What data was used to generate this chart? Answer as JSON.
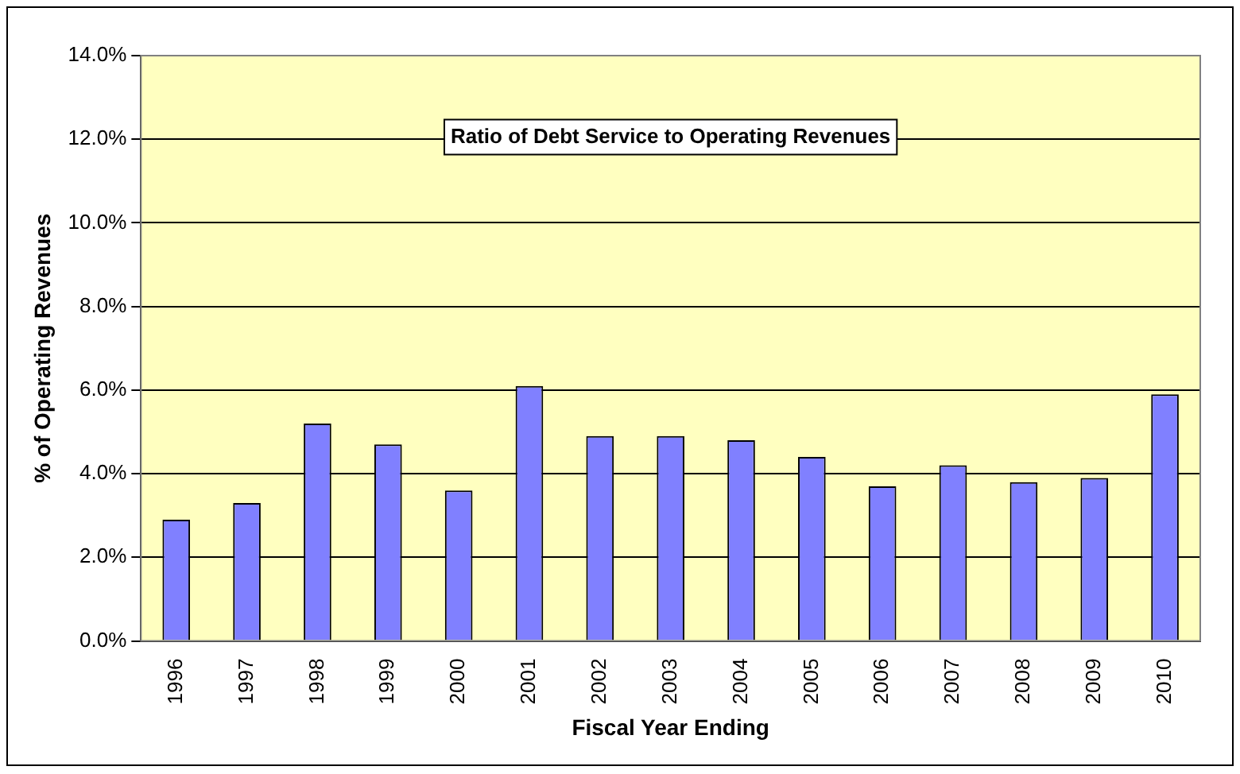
{
  "chart_data": {
    "type": "bar",
    "title": "Ratio of Debt Service to Operating Revenues",
    "xlabel": "Fiscal Year Ending",
    "ylabel": "% of Operating Revenues",
    "categories": [
      "1996",
      "1997",
      "1998",
      "1999",
      "2000",
      "2001",
      "2002",
      "2003",
      "2004",
      "2005",
      "2006",
      "2007",
      "2008",
      "2009",
      "2010"
    ],
    "values": [
      2.9,
      3.3,
      5.2,
      4.7,
      3.6,
      6.1,
      4.9,
      4.9,
      4.8,
      4.4,
      3.7,
      4.2,
      3.8,
      3.9,
      5.9
    ],
    "color": "#8080ff",
    "ylim": [
      0,
      14
    ],
    "yticks": [
      {
        "value": 0,
        "label": "0.0%"
      },
      {
        "value": 2,
        "label": "2.0%"
      },
      {
        "value": 4,
        "label": "4.0%"
      },
      {
        "value": 6,
        "label": "6.0%"
      },
      {
        "value": 8,
        "label": "8.0%"
      },
      {
        "value": 10,
        "label": "10.0%"
      },
      {
        "value": 12,
        "label": "12.0%"
      },
      {
        "value": 14,
        "label": "14.0%"
      }
    ],
    "grid": "y",
    "legend": false
  }
}
